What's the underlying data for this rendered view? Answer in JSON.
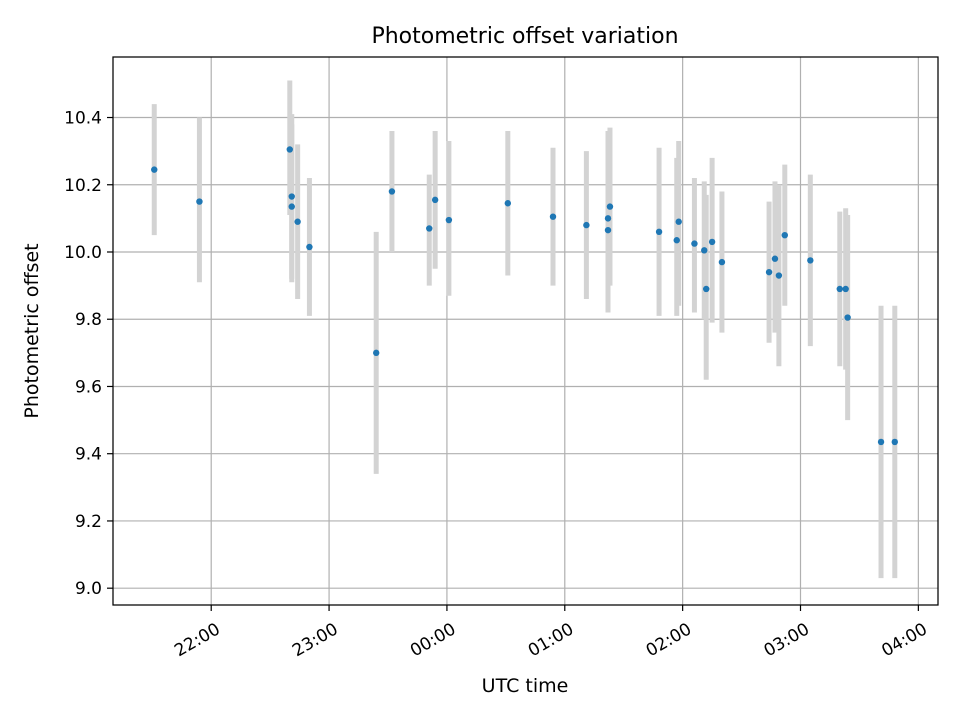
{
  "chart_data": {
    "type": "scatter",
    "title": "Photometric offset variation",
    "xlabel": "UTC time",
    "ylabel": "Photometric offset",
    "x_unit": "UTC time (HH:MM), evening then past midnight",
    "xlim": [
      "21:10",
      "04:10"
    ],
    "ylim": [
      8.95,
      10.58
    ],
    "grid": true,
    "x_ticks": [
      "22:00",
      "23:00",
      "00:00",
      "01:00",
      "02:00",
      "03:00",
      "04:00"
    ],
    "y_ticks": [
      "9.0",
      "9.2",
      "9.4",
      "9.6",
      "9.8",
      "10.0",
      "10.2",
      "10.4"
    ],
    "series": [
      {
        "marker_color": "#1f77b4",
        "errorbar_color": "#d3d3d3",
        "points": [
          {
            "x": "21:31",
            "y": 10.245,
            "lo": 10.05,
            "hi": 10.44
          },
          {
            "x": "21:54",
            "y": 10.15,
            "lo": 9.91,
            "hi": 10.4
          },
          {
            "x": "22:40",
            "y": 10.305,
            "lo": 10.11,
            "hi": 10.51
          },
          {
            "x": "22:41",
            "y": 10.165,
            "lo": 9.92,
            "hi": 10.41
          },
          {
            "x": "22:41",
            "y": 10.135,
            "lo": 9.91,
            "hi": 10.38
          },
          {
            "x": "22:44",
            "y": 10.09,
            "lo": 9.86,
            "hi": 10.32
          },
          {
            "x": "22:50",
            "y": 10.015,
            "lo": 9.81,
            "hi": 10.22
          },
          {
            "x": "23:24",
            "y": 9.7,
            "lo": 9.34,
            "hi": 10.06
          },
          {
            "x": "23:32",
            "y": 10.18,
            "lo": 10.0,
            "hi": 10.36
          },
          {
            "x": "23:51",
            "y": 10.07,
            "lo": 9.9,
            "hi": 10.23
          },
          {
            "x": "23:54",
            "y": 10.155,
            "lo": 9.95,
            "hi": 10.36
          },
          {
            "x": "00:01",
            "y": 10.095,
            "lo": 9.87,
            "hi": 10.33
          },
          {
            "x": "00:31",
            "y": 10.145,
            "lo": 9.93,
            "hi": 10.36
          },
          {
            "x": "00:54",
            "y": 10.105,
            "lo": 9.9,
            "hi": 10.31
          },
          {
            "x": "01:11",
            "y": 10.08,
            "lo": 9.86,
            "hi": 10.3
          },
          {
            "x": "01:22",
            "y": 10.1,
            "lo": 9.82,
            "hi": 10.36
          },
          {
            "x": "01:22",
            "y": 10.065,
            "lo": 9.88,
            "hi": 10.34
          },
          {
            "x": "01:23",
            "y": 10.135,
            "lo": 9.9,
            "hi": 10.37
          },
          {
            "x": "01:48",
            "y": 10.06,
            "lo": 9.81,
            "hi": 10.31
          },
          {
            "x": "01:57",
            "y": 10.035,
            "lo": 9.81,
            "hi": 10.28
          },
          {
            "x": "01:58",
            "y": 10.09,
            "lo": 9.84,
            "hi": 10.33
          },
          {
            "x": "02:06",
            "y": 10.025,
            "lo": 9.82,
            "hi": 10.22
          },
          {
            "x": "02:11",
            "y": 10.005,
            "lo": 9.8,
            "hi": 10.21
          },
          {
            "x": "02:12",
            "y": 9.89,
            "lo": 9.62,
            "hi": 10.17
          },
          {
            "x": "02:15",
            "y": 10.03,
            "lo": 9.79,
            "hi": 10.28
          },
          {
            "x": "02:20",
            "y": 9.97,
            "lo": 9.76,
            "hi": 10.18
          },
          {
            "x": "02:44",
            "y": 9.94,
            "lo": 9.73,
            "hi": 10.15
          },
          {
            "x": "02:47",
            "y": 9.98,
            "lo": 9.76,
            "hi": 10.21
          },
          {
            "x": "02:49",
            "y": 9.93,
            "lo": 9.66,
            "hi": 10.2
          },
          {
            "x": "02:52",
            "y": 10.05,
            "lo": 9.84,
            "hi": 10.26
          },
          {
            "x": "03:05",
            "y": 9.975,
            "lo": 9.72,
            "hi": 10.23
          },
          {
            "x": "03:20",
            "y": 9.89,
            "lo": 9.66,
            "hi": 10.12
          },
          {
            "x": "03:23",
            "y": 9.89,
            "lo": 9.65,
            "hi": 10.13
          },
          {
            "x": "03:24",
            "y": 9.805,
            "lo": 9.5,
            "hi": 10.11
          },
          {
            "x": "03:41",
            "y": 9.435,
            "lo": 9.03,
            "hi": 9.84
          },
          {
            "x": "03:48",
            "y": 9.435,
            "lo": 9.03,
            "hi": 9.84
          }
        ]
      }
    ]
  }
}
